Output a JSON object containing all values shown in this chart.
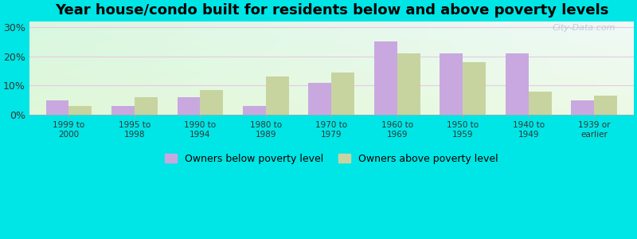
{
  "title": "Year house/condo built for residents below and above poverty levels",
  "categories": [
    "1999 to\n2000",
    "1995 to\n1998",
    "1990 to\n1994",
    "1980 to\n1989",
    "1970 to\n1979",
    "1960 to\n1969",
    "1950 to\n1959",
    "1940 to\n1949",
    "1939 or\nearlier"
  ],
  "below_poverty": [
    5.0,
    3.0,
    6.0,
    3.0,
    11.0,
    25.0,
    21.0,
    21.0,
    5.0
  ],
  "above_poverty": [
    3.0,
    6.0,
    8.5,
    13.0,
    14.5,
    21.0,
    18.0,
    8.0,
    6.5
  ],
  "below_color": "#c9a8e0",
  "above_color": "#c8d4a0",
  "ylabel_ticks": [
    0,
    10,
    20,
    30
  ],
  "ylim": [
    0,
    32
  ],
  "outer_bg": "#00e5e5",
  "legend_below": "Owners below poverty level",
  "legend_above": "Owners above poverty level",
  "title_fontsize": 13,
  "watermark": "City-Data.com",
  "bar_width": 0.35,
  "grid_color": "#e8c8e8",
  "grid_linewidth": 0.8
}
